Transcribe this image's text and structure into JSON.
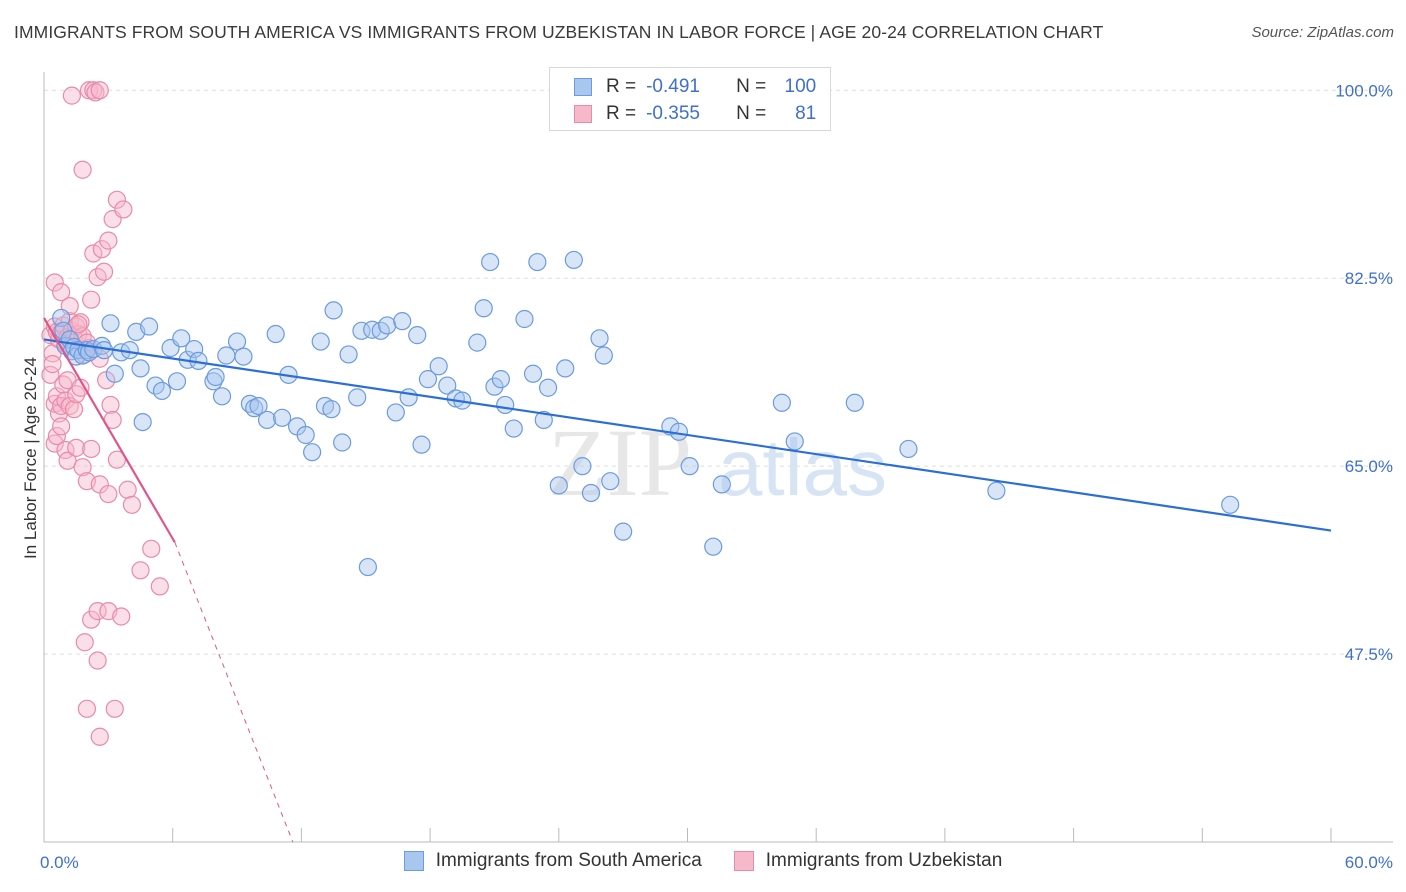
{
  "header": {
    "title": "IMMIGRANTS FROM SOUTH AMERICA VS IMMIGRANTS FROM UZBEKISTAN IN LABOR FORCE | AGE 20-24 CORRELATION CHART",
    "source": "Source: ZipAtlas.com"
  },
  "watermark": {
    "zip": "ZIP",
    "atlas": "atlas"
  },
  "legend": {
    "rows": [
      {
        "r_label": "R =",
        "r_value": "-0.491",
        "n_label": "N =",
        "n_value": "100"
      },
      {
        "r_label": "R =",
        "r_value": "-0.355",
        "n_label": "N =",
        "n_value": "81"
      }
    ]
  },
  "colors": {
    "blue_fill": "#a9c6ee",
    "blue_stroke": "#6b9be0",
    "blue_line": "#2b6fd6",
    "pink_fill": "#f6b8cb",
    "pink_stroke": "#ea8aa8",
    "pink_line": "#e0558a",
    "axis_text": "#3f6fd0",
    "grid": "#dddddd"
  },
  "chart_data": {
    "type": "scatter",
    "title": "IMMIGRANTS FROM SOUTH AMERICA VS IMMIGRANTS FROM UZBEKISTAN IN LABOR FORCE | AGE 20-24 CORRELATION CHART",
    "xlabel": "",
    "ylabel": "In Labor Force | Age 20-24",
    "xlim": [
      0,
      60
    ],
    "ylim": [
      30,
      101.7
    ],
    "x_tick_labels": [
      "0.0%",
      "60.0%"
    ],
    "y_ticks": [
      47.5,
      65.0,
      82.5,
      100.0
    ],
    "y_tick_labels": [
      "47.5%",
      "65.0%",
      "82.5%",
      "100.0%"
    ],
    "grid": true,
    "legend_position": "top-center",
    "series": [
      {
        "name": "Immigrants from South America",
        "r": -0.491,
        "n": 100,
        "trend": {
          "x": [
            0,
            60
          ],
          "y": [
            76.8,
            59.0
          ]
        },
        "points": [
          [
            0.8,
            78.8
          ],
          [
            0.9,
            77.6
          ],
          [
            1.0,
            76.2
          ],
          [
            1.2,
            76.8
          ],
          [
            1.3,
            75.7
          ],
          [
            1.4,
            76.1
          ],
          [
            1.5,
            75.2
          ],
          [
            1.6,
            75.8
          ],
          [
            1.8,
            75.3
          ],
          [
            2.0,
            75.8
          ],
          [
            2.1,
            75.6
          ],
          [
            2.3,
            75.9
          ],
          [
            2.7,
            76.2
          ],
          [
            2.8,
            75.8
          ],
          [
            3.1,
            78.3
          ],
          [
            3.3,
            73.6
          ],
          [
            3.6,
            75.6
          ],
          [
            4.0,
            75.8
          ],
          [
            4.3,
            77.5
          ],
          [
            4.5,
            74.1
          ],
          [
            4.6,
            69.1
          ],
          [
            4.9,
            78.0
          ],
          [
            5.2,
            72.5
          ],
          [
            5.5,
            72.0
          ],
          [
            5.9,
            76.0
          ],
          [
            6.2,
            72.9
          ],
          [
            6.4,
            76.9
          ],
          [
            6.7,
            74.9
          ],
          [
            7.0,
            75.9
          ],
          [
            7.2,
            74.8
          ],
          [
            7.9,
            72.9
          ],
          [
            8.0,
            73.3
          ],
          [
            8.3,
            71.5
          ],
          [
            8.5,
            75.3
          ],
          [
            9.0,
            76.6
          ],
          [
            9.3,
            75.2
          ],
          [
            9.6,
            70.8
          ],
          [
            9.8,
            70.4
          ],
          [
            10.0,
            70.6
          ],
          [
            10.4,
            69.3
          ],
          [
            10.8,
            77.3
          ],
          [
            11.1,
            69.5
          ],
          [
            11.4,
            73.5
          ],
          [
            11.8,
            68.7
          ],
          [
            12.2,
            67.9
          ],
          [
            12.5,
            66.3
          ],
          [
            12.9,
            76.6
          ],
          [
            13.1,
            70.6
          ],
          [
            13.4,
            70.3
          ],
          [
            13.5,
            79.5
          ],
          [
            13.9,
            67.2
          ],
          [
            14.2,
            75.4
          ],
          [
            14.6,
            71.4
          ],
          [
            14.8,
            77.6
          ],
          [
            15.1,
            55.6
          ],
          [
            15.3,
            77.7
          ],
          [
            15.7,
            77.6
          ],
          [
            16.0,
            78.1
          ],
          [
            16.4,
            70.0
          ],
          [
            16.7,
            78.5
          ],
          [
            17.0,
            71.4
          ],
          [
            17.4,
            77.2
          ],
          [
            17.6,
            67.0
          ],
          [
            17.9,
            73.1
          ],
          [
            18.4,
            74.3
          ],
          [
            18.8,
            72.5
          ],
          [
            19.2,
            71.3
          ],
          [
            19.5,
            71.1
          ],
          [
            20.2,
            76.5
          ],
          [
            20.5,
            79.7
          ],
          [
            20.8,
            84.0
          ],
          [
            21.0,
            72.4
          ],
          [
            21.3,
            73.1
          ],
          [
            21.5,
            70.7
          ],
          [
            21.9,
            68.5
          ],
          [
            22.4,
            78.7
          ],
          [
            22.8,
            73.6
          ],
          [
            23.0,
            84.0
          ],
          [
            23.3,
            69.3
          ],
          [
            23.5,
            72.3
          ],
          [
            24.0,
            63.2
          ],
          [
            24.3,
            74.1
          ],
          [
            24.7,
            84.2
          ],
          [
            25.1,
            65.0
          ],
          [
            25.5,
            62.5
          ],
          [
            25.9,
            76.9
          ],
          [
            26.1,
            75.3
          ],
          [
            26.4,
            63.6
          ],
          [
            27.0,
            58.9
          ],
          [
            29.2,
            68.7
          ],
          [
            29.6,
            68.2
          ],
          [
            30.1,
            65.0
          ],
          [
            31.2,
            57.5
          ],
          [
            31.6,
            63.3
          ],
          [
            34.4,
            70.9
          ],
          [
            35.0,
            67.3
          ],
          [
            37.8,
            70.9
          ],
          [
            40.3,
            66.6
          ],
          [
            44.4,
            62.7
          ],
          [
            55.3,
            61.4
          ]
        ]
      },
      {
        "name": "Immigrants from Uzbekistan",
        "r": -0.355,
        "n": 81,
        "trend": {
          "x": [
            0.0,
            6.1
          ],
          "y": [
            78.8,
            57.9
          ]
        },
        "trend_dashed": {
          "x": [
            6.1,
            11.6
          ],
          "y": [
            57.9,
            30.0
          ]
        },
        "points": [
          [
            0.3,
            77.2
          ],
          [
            0.4,
            75.5
          ],
          [
            0.5,
            78.0
          ],
          [
            0.6,
            77.5
          ],
          [
            0.7,
            76.8
          ],
          [
            0.8,
            77.4
          ],
          [
            0.9,
            78.1
          ],
          [
            1.0,
            76.4
          ],
          [
            1.1,
            77.0
          ],
          [
            1.2,
            78.5
          ],
          [
            1.3,
            77.6
          ],
          [
            1.4,
            76.9
          ],
          [
            1.5,
            78.0
          ],
          [
            1.6,
            77.3
          ],
          [
            1.7,
            78.4
          ],
          [
            1.8,
            77.1
          ],
          [
            0.3,
            73.5
          ],
          [
            0.4,
            74.5
          ],
          [
            0.5,
            70.8
          ],
          [
            0.6,
            71.5
          ],
          [
            0.7,
            69.9
          ],
          [
            0.8,
            70.6
          ],
          [
            0.9,
            72.6
          ],
          [
            1.0,
            71.1
          ],
          [
            1.1,
            73.0
          ],
          [
            1.2,
            70.6
          ],
          [
            0.5,
            67.1
          ],
          [
            0.6,
            67.8
          ],
          [
            0.8,
            68.7
          ],
          [
            1.0,
            66.5
          ],
          [
            1.4,
            70.3
          ],
          [
            1.5,
            71.7
          ],
          [
            1.7,
            72.3
          ],
          [
            2.1,
            76.0
          ],
          [
            2.2,
            80.5
          ],
          [
            2.3,
            84.8
          ],
          [
            2.5,
            82.6
          ],
          [
            2.7,
            85.2
          ],
          [
            2.8,
            83.1
          ],
          [
            3.0,
            86.0
          ],
          [
            3.2,
            88.0
          ],
          [
            3.4,
            89.8
          ],
          [
            3.7,
            88.9
          ],
          [
            1.8,
            92.6
          ],
          [
            2.1,
            100.0
          ],
          [
            2.3,
            100.0
          ],
          [
            2.4,
            99.8
          ],
          [
            2.6,
            100.0
          ],
          [
            1.3,
            99.5
          ],
          [
            0.5,
            82.1
          ],
          [
            0.8,
            81.2
          ],
          [
            1.2,
            79.9
          ],
          [
            1.6,
            78.2
          ],
          [
            1.9,
            75.4
          ],
          [
            2.0,
            76.5
          ],
          [
            2.6,
            75.0
          ],
          [
            2.9,
            73.0
          ],
          [
            3.1,
            70.7
          ],
          [
            3.2,
            69.3
          ],
          [
            1.1,
            65.5
          ],
          [
            1.5,
            66.7
          ],
          [
            1.8,
            64.9
          ],
          [
            2.0,
            63.6
          ],
          [
            2.2,
            66.6
          ],
          [
            2.6,
            63.3
          ],
          [
            3.0,
            62.4
          ],
          [
            3.4,
            65.6
          ],
          [
            3.9,
            62.8
          ],
          [
            4.1,
            61.4
          ],
          [
            4.5,
            55.3
          ],
          [
            5.0,
            57.3
          ],
          [
            5.4,
            53.8
          ],
          [
            2.2,
            50.7
          ],
          [
            2.5,
            51.5
          ],
          [
            3.0,
            51.5
          ],
          [
            3.6,
            51.0
          ],
          [
            1.9,
            48.6
          ],
          [
            2.5,
            46.9
          ],
          [
            2.0,
            42.4
          ],
          [
            3.3,
            42.4
          ],
          [
            2.6,
            39.8
          ]
        ]
      }
    ]
  }
}
